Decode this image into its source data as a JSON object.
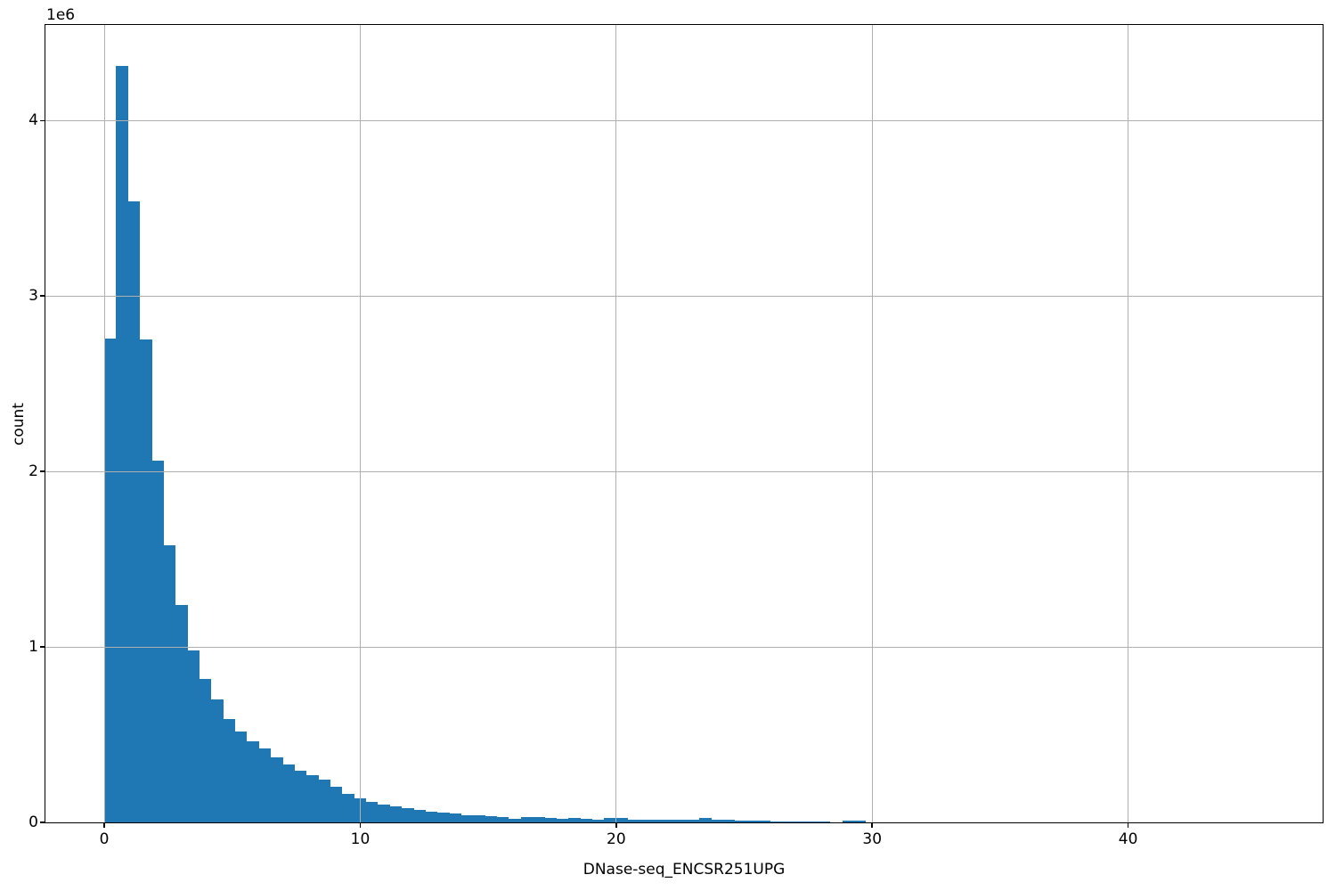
{
  "figure": {
    "background_color": "#ffffff",
    "text_color": "#000000"
  },
  "chart_data": {
    "type": "bar",
    "subtype": "histogram",
    "title": "",
    "xlabel": "DNase-seq_ENCSR251UPG",
    "ylabel": "count",
    "y_offset_text": "1e6",
    "bar_color": "#1f77b4",
    "grid_color": "#b0b0b0",
    "spine_color": "#000000",
    "grid": true,
    "grid_above_bars": true,
    "legend": null,
    "xlim": [
      -2.3,
      47.6
    ],
    "ylim": [
      0,
      4545000
    ],
    "x_ticks": [
      0,
      10,
      20,
      30,
      40
    ],
    "x_tick_labels": [
      "0",
      "10",
      "20",
      "30",
      "40"
    ],
    "y_ticks": [
      0,
      1000000,
      2000000,
      3000000,
      4000000
    ],
    "y_tick_labels": [
      "0",
      "1",
      "2",
      "3",
      "4"
    ],
    "bins": {
      "start": 0,
      "width": 0.465
    },
    "counts": [
      2760000,
      4310000,
      3540000,
      2750000,
      2060000,
      1580000,
      1240000,
      980000,
      820000,
      700000,
      590000,
      520000,
      460000,
      420000,
      370000,
      330000,
      295000,
      270000,
      245000,
      205000,
      161000,
      139000,
      117000,
      100000,
      91000,
      80000,
      71000,
      63000,
      54000,
      49000,
      43000,
      39000,
      36000,
      32000,
      22000,
      30000,
      28000,
      24000,
      20000,
      26000,
      18000,
      16000,
      26000,
      24000,
      17000,
      16000,
      15000,
      14000,
      13000,
      13000,
      25000,
      17000,
      15000,
      10000,
      9000,
      8000,
      7000,
      6000,
      5000,
      4000,
      3000,
      2000,
      9000,
      10000
    ]
  }
}
